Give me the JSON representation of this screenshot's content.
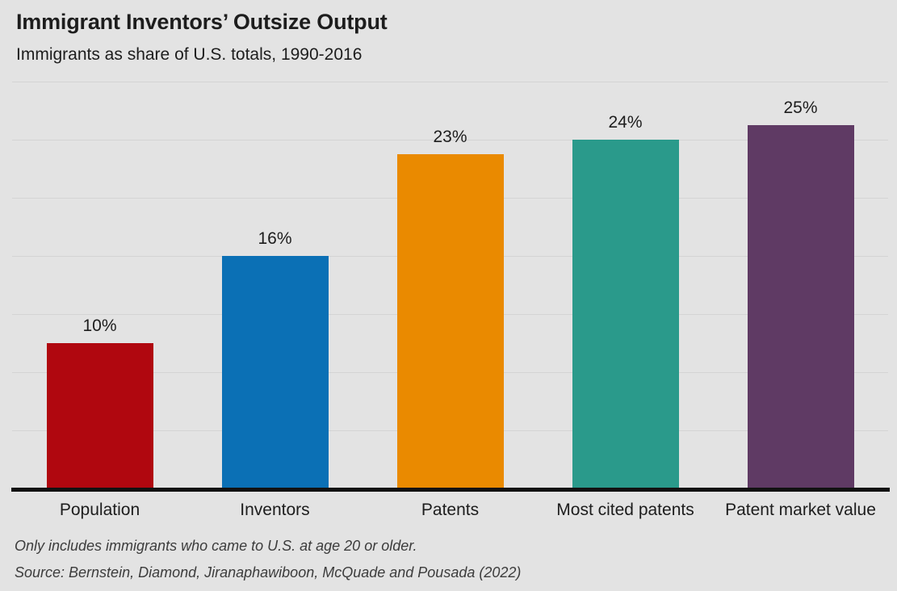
{
  "chart_data": {
    "type": "bar",
    "title": "Immigrant Inventors’ Outsize Output",
    "subtitle": "Immigrants as share of U.S. totals, 1990-2016",
    "categories": [
      "Population",
      "Inventors",
      "Patents",
      "Most cited patents",
      "Patent market value"
    ],
    "values": [
      10,
      16,
      23,
      24,
      25
    ],
    "value_labels": [
      "10%",
      "16%",
      "23%",
      "24%",
      "25%"
    ],
    "bar_colors": [
      "#b0070f",
      "#0b70b5",
      "#ea8a00",
      "#2a9a8b",
      "#5f3a64"
    ],
    "ylabel": "",
    "xlabel": "",
    "ylim": [
      0,
      28
    ],
    "gridline_step_pct": 4,
    "grid": "horizontal-only",
    "legend": "none",
    "footnote": "Only includes immigrants who came to U.S. at age 20 or older.",
    "source": "Source: Bernstein, Diamond, Jiranaphawiboon, McQuade and Pousada (2022)",
    "colors": {
      "background": "#e3e3e3",
      "gridline": "#d4d4d4",
      "axis_line": "#111111",
      "title_text": "#1d1d1d",
      "body_text": "#1d1d1d",
      "note_text": "#3c3c3c"
    }
  }
}
